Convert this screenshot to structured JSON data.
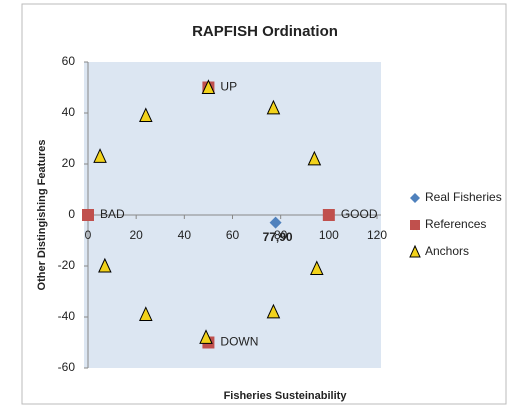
{
  "chart_data": {
    "type": "scatter",
    "title": "RAPFISH Ordination",
    "x_label": "Fisheries Susteinability",
    "y_label": "Other Distingishing Features",
    "xlim": [
      0,
      120
    ],
    "xticks": [
      0,
      20,
      40,
      60,
      80,
      100,
      120
    ],
    "ylim": [
      -60,
      60
    ],
    "yticks": [
      -60,
      -40,
      -20,
      0,
      20,
      40,
      60
    ],
    "legend": "right",
    "series": [
      {
        "name": "Real Fisheries",
        "color": "#4f81bd",
        "marker": "diamond",
        "x": [
          77.9
        ],
        "values": [
          -3
        ],
        "value_labels": [
          "77,90"
        ]
      },
      {
        "name": "References",
        "color": "#c0504d",
        "marker": "square",
        "x": [
          0,
          100,
          50,
          50
        ],
        "values": [
          0,
          0,
          50,
          -50
        ],
        "labels": [
          "BAD",
          "GOOD",
          "UP",
          "DOWN"
        ]
      },
      {
        "name": "Anchors",
        "color": "#f2d21b",
        "marker": "triangle",
        "x": [
          50,
          77,
          24,
          5,
          94,
          7,
          95,
          24,
          77,
          49
        ],
        "values": [
          50,
          42,
          39,
          23,
          22,
          -20,
          -21,
          -39,
          -38,
          -48
        ]
      }
    ]
  }
}
